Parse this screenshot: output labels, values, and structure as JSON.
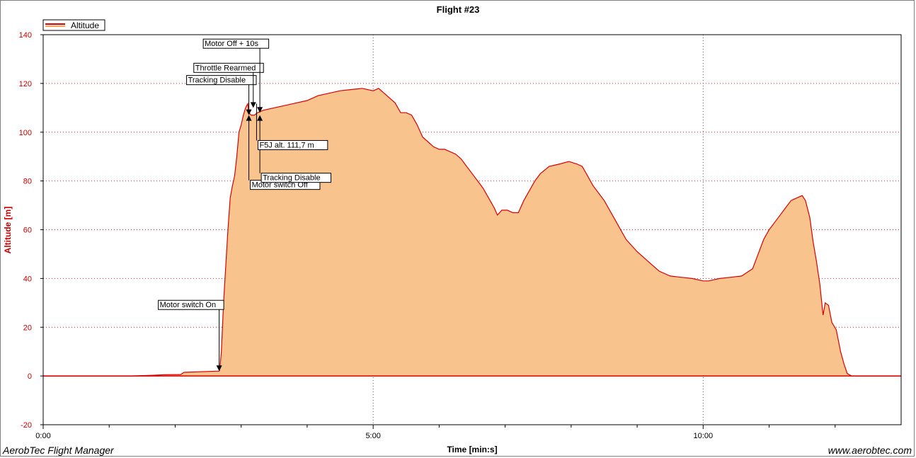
{
  "app": {
    "footer_left": "AerobTec Flight Manager",
    "footer_right": "www.aerobtec.com"
  },
  "colors": {
    "series_line": "#d80000",
    "fill": "#f9c38e",
    "axis_text": "#cc0000",
    "grid": "#e03030",
    "background": "#ffffff"
  },
  "chart_data": {
    "type": "area",
    "title": "Flight #23",
    "xlabel": "Time [min:s]",
    "ylabel": "Altitude [m]",
    "xlim": [
      0,
      780
    ],
    "ylim": [
      -20,
      140
    ],
    "grid": true,
    "legend_position": "top-left",
    "x_ticks": [
      {
        "value": 0,
        "label": "0:00"
      },
      {
        "value": 300,
        "label": "5:00"
      },
      {
        "value": 600,
        "label": "10:00"
      }
    ],
    "x_minor_ticks": [
      60,
      120,
      180,
      240,
      360,
      420,
      480,
      540,
      660,
      720
    ],
    "y_ticks": [
      -20,
      0,
      20,
      40,
      60,
      80,
      100,
      120,
      140
    ],
    "series": [
      {
        "name": "Altitude",
        "points": [
          [
            0,
            0
          ],
          [
            60,
            0
          ],
          [
            80,
            0
          ],
          [
            100,
            0.3
          ],
          [
            110,
            0.5
          ],
          [
            125,
            0.6
          ],
          [
            128,
            1.5
          ],
          [
            160,
            2
          ],
          [
            160.5,
            2.5
          ],
          [
            161,
            5
          ],
          [
            162,
            10
          ],
          [
            163,
            20
          ],
          [
            164,
            30
          ],
          [
            166,
            45
          ],
          [
            168,
            60
          ],
          [
            170,
            73
          ],
          [
            172,
            78
          ],
          [
            174,
            82
          ],
          [
            176,
            90
          ],
          [
            178,
            100
          ],
          [
            180,
            103
          ],
          [
            182,
            107
          ],
          [
            184,
            110
          ],
          [
            186,
            111.7
          ],
          [
            187,
            108
          ],
          [
            189,
            107
          ],
          [
            192,
            107
          ],
          [
            195,
            108
          ],
          [
            200,
            109
          ],
          [
            210,
            110
          ],
          [
            220,
            111
          ],
          [
            230,
            112
          ],
          [
            240,
            113
          ],
          [
            250,
            115
          ],
          [
            260,
            116
          ],
          [
            270,
            117
          ],
          [
            280,
            117.5
          ],
          [
            290,
            118
          ],
          [
            300,
            117
          ],
          [
            305,
            118
          ],
          [
            310,
            116
          ],
          [
            320,
            112
          ],
          [
            325,
            108
          ],
          [
            330,
            108
          ],
          [
            335,
            107
          ],
          [
            340,
            103
          ],
          [
            345,
            98
          ],
          [
            350,
            96
          ],
          [
            355,
            94
          ],
          [
            360,
            93
          ],
          [
            365,
            93
          ],
          [
            370,
            92
          ],
          [
            375,
            91
          ],
          [
            380,
            89
          ],
          [
            385,
            86
          ],
          [
            390,
            83
          ],
          [
            395,
            80
          ],
          [
            400,
            77
          ],
          [
            405,
            73
          ],
          [
            410,
            69
          ],
          [
            413,
            66
          ],
          [
            417,
            68
          ],
          [
            422,
            68
          ],
          [
            427,
            67
          ],
          [
            432,
            67
          ],
          [
            437,
            72
          ],
          [
            442,
            76
          ],
          [
            447,
            80
          ],
          [
            452,
            83
          ],
          [
            460,
            86
          ],
          [
            470,
            87
          ],
          [
            478,
            88
          ],
          [
            485,
            87
          ],
          [
            490,
            86
          ],
          [
            495,
            82
          ],
          [
            500,
            78
          ],
          [
            510,
            72
          ],
          [
            520,
            64
          ],
          [
            530,
            56
          ],
          [
            540,
            51
          ],
          [
            550,
            47
          ],
          [
            560,
            43
          ],
          [
            570,
            41
          ],
          [
            580,
            40.5
          ],
          [
            590,
            40
          ],
          [
            600,
            39
          ],
          [
            605,
            39
          ],
          [
            615,
            40
          ],
          [
            625,
            40.5
          ],
          [
            635,
            41
          ],
          [
            645,
            44
          ],
          [
            650,
            50
          ],
          [
            655,
            56
          ],
          [
            660,
            60
          ],
          [
            665,
            63
          ],
          [
            670,
            66
          ],
          [
            675,
            69
          ],
          [
            680,
            72
          ],
          [
            685,
            73
          ],
          [
            690,
            74
          ],
          [
            693,
            72
          ],
          [
            697,
            65
          ],
          [
            700,
            55
          ],
          [
            703,
            47
          ],
          [
            706,
            38
          ],
          [
            709,
            25
          ],
          [
            711,
            30
          ],
          [
            714,
            29
          ],
          [
            717,
            22
          ],
          [
            721,
            19
          ],
          [
            725,
            10
          ],
          [
            728,
            5
          ],
          [
            731,
            1
          ],
          [
            735,
            0
          ],
          [
            750,
            0
          ],
          [
            780,
            0
          ]
        ]
      }
    ],
    "annotations": [
      {
        "label": "Motor switch On",
        "time": 160,
        "altitude": 2,
        "direction": "down"
      },
      {
        "label": "Tracking Disable",
        "time": 187,
        "altitude": 107,
        "direction": "down"
      },
      {
        "label": "Throttle Rearmed",
        "time": 191,
        "altitude": 110,
        "direction": "down"
      },
      {
        "label": "Motor Off + 10s",
        "time": 197,
        "altitude": 108,
        "direction": "down"
      },
      {
        "label": "Motor switch Off",
        "time": 187,
        "altitude": 107,
        "direction": "up"
      },
      {
        "label": "Tracking Disable",
        "time": 197,
        "altitude": 107,
        "direction": "up"
      },
      {
        "label": "F5J alt. 111,7 m",
        "time": 194,
        "altitude": 111.7,
        "direction": "none"
      }
    ]
  }
}
